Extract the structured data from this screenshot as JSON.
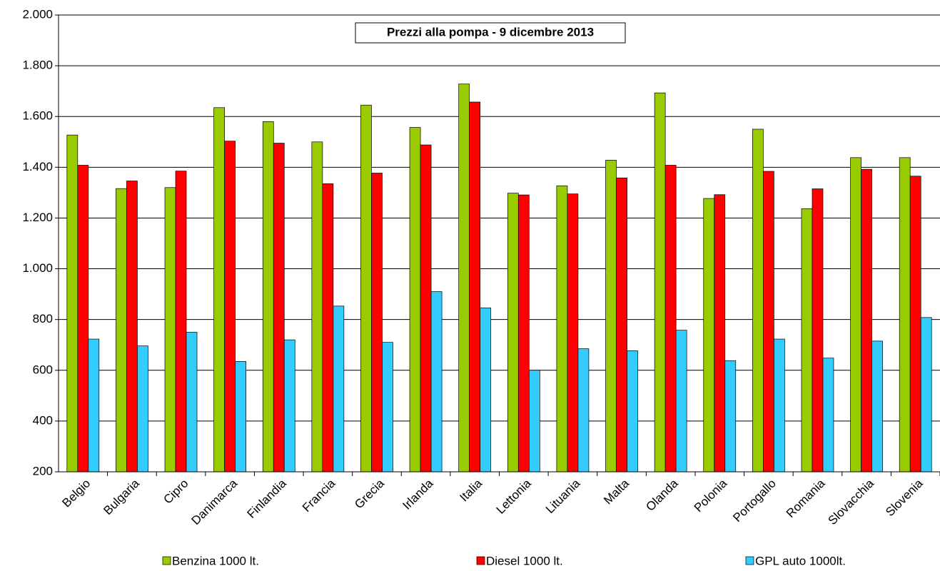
{
  "chart_data": {
    "type": "bar",
    "title": "Prezzi  alla pompa -  9 dicembre 2013",
    "categories": [
      "Belgio",
      "Bulgaria",
      "Cipro",
      "Danimarca",
      "Finlandia",
      "Francia",
      "Grecia",
      "Irlanda",
      "Italia",
      "Lettonia",
      "Lituania",
      "Malta",
      "Olanda",
      "Polonia",
      "Portogallo",
      "Romania",
      "Slovacchia",
      "Slovenia"
    ],
    "series": [
      {
        "name": "Benzina 1000 lt.",
        "color": "#99cc00",
        "values": [
          1527,
          1316,
          1320,
          1635,
          1580,
          1500,
          1645,
          1557,
          1728,
          1298,
          1327,
          1428,
          1693,
          1277,
          1550,
          1237,
          1438,
          1438
        ]
      },
      {
        "name": "Diesel 1000 lt.",
        "color": "#ff0000",
        "values": [
          1408,
          1346,
          1385,
          1503,
          1495,
          1335,
          1377,
          1488,
          1657,
          1291,
          1295,
          1358,
          1408,
          1292,
          1384,
          1315,
          1392,
          1365
        ]
      },
      {
        "name": "GPL auto 1000lt.",
        "color": "#33ccff",
        "values": [
          723,
          696,
          750,
          635,
          720,
          853,
          710,
          910,
          846,
          600,
          685,
          677,
          758,
          638,
          723,
          648,
          715,
          808
        ]
      }
    ],
    "ylim": [
      200,
      2000
    ],
    "yticks": [
      200,
      400,
      600,
      800,
      {
        "value": 1000,
        "label": "1.000"
      },
      {
        "value": 1200,
        "label": "1.200"
      },
      {
        "value": 1400,
        "label": "1.400"
      },
      {
        "value": 1600,
        "label": "1.600"
      },
      {
        "value": 1800,
        "label": "1.800"
      },
      {
        "value": 2000,
        "label": "2.000"
      }
    ],
    "grid": true
  }
}
